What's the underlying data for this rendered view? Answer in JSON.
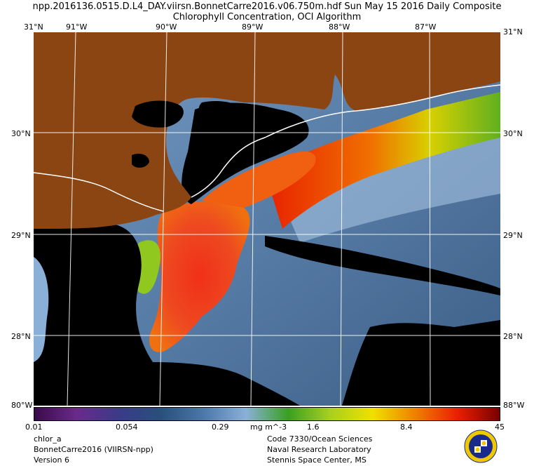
{
  "header": {
    "line1": "npp.2016136.0515.D.L4_DAY.viirsn.BonnetCarre2016.v06.750m.hdf    Sun May 15 2016 Daily Composite",
    "line2": "Chlorophyll Concentration, OCI Algorithm"
  },
  "axes": {
    "lon_labels": [
      "91°W",
      "90°W",
      "89°W",
      "88°W",
      "87°W"
    ],
    "lat_labels": [
      "30°N",
      "29°N",
      "28°N"
    ],
    "corner_top": "31°N",
    "corner_bottom": "80°W",
    "corner_right_bottom": "88°W",
    "corner_right_top": "31°N"
  },
  "colorbar": {
    "ticks": [
      "0.01",
      "0.054",
      "0.29",
      "1.6",
      "8.4",
      "45"
    ],
    "units": "mg m^-3",
    "colors": [
      "#3a0a4a",
      "#6a2a8a",
      "#3a3a8a",
      "#28507a",
      "#4a78a8",
      "#8ab0d8",
      "#3aa020",
      "#a8d020",
      "#f0e000",
      "#f08000",
      "#e82000",
      "#7a0000"
    ]
  },
  "footer": {
    "left": [
      "chlor_a",
      "BonnetCarre2016 (VIIRSN-npp)",
      "Version 6"
    ],
    "right": [
      "Code 7330/Ocean Sciences",
      "Naval Research Laboratory",
      "Stennis Space Center, MS"
    ]
  },
  "map": {
    "land_color": "#8b4513",
    "cloud_color": "#000000",
    "ocean_color": "#4a6a8a"
  }
}
